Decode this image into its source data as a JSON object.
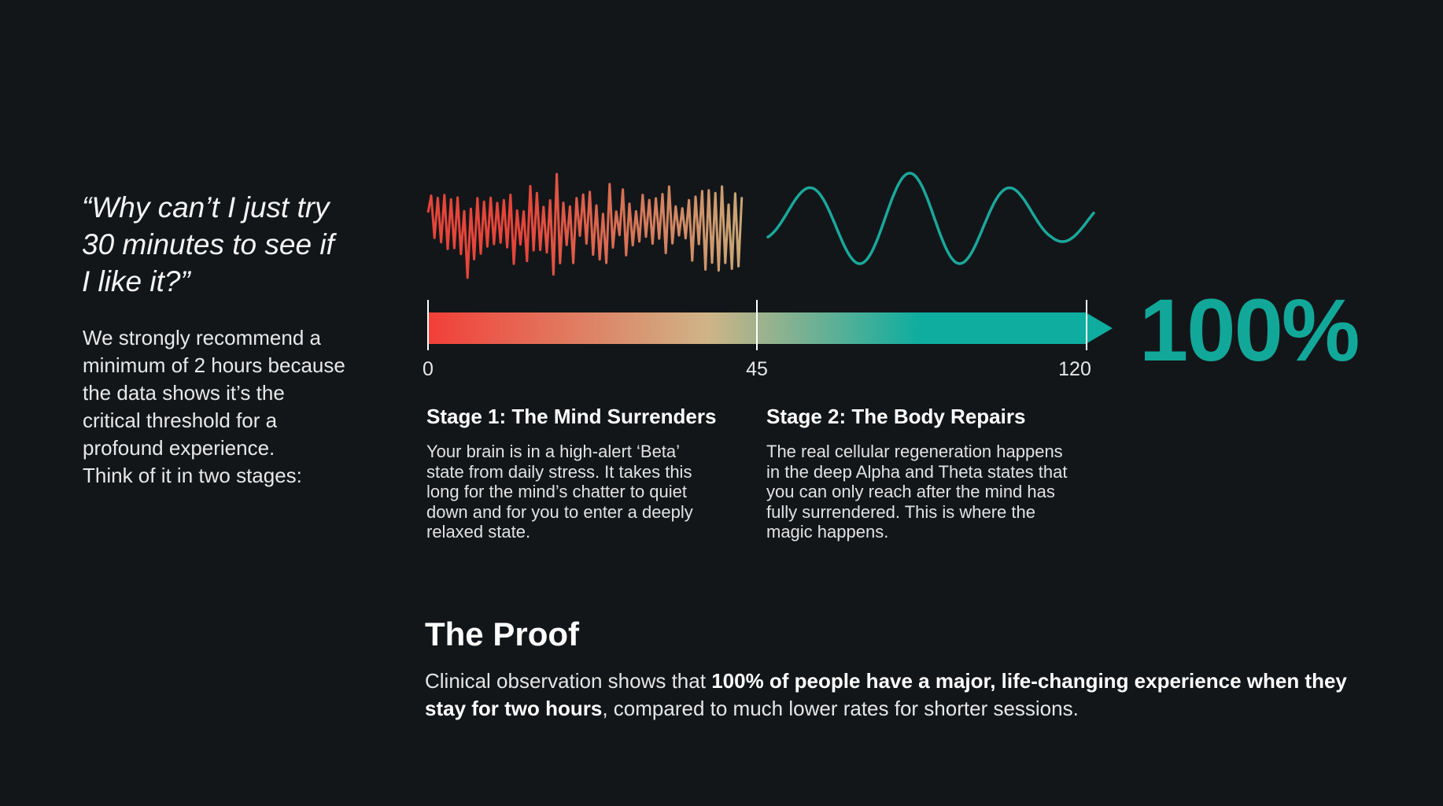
{
  "quote": {
    "line1": "“Why can’t I just try",
    "line2": "30 minutes to see if",
    "line3": "I like it?”"
  },
  "intro": {
    "line1": "We strongly recommend a",
    "line2": "minimum of 2 hours because",
    "line3": "the data shows it’s the",
    "line4": "critical threshold for a",
    "line5": "profound experience.",
    "line6": "Think of it in two stages:"
  },
  "timeline": {
    "ticks": [
      "0",
      "45",
      "120"
    ],
    "big_value": "100%",
    "colors": {
      "start": "#f23f38",
      "middle": "#cfb487",
      "end": "#0eada0",
      "wave_start": "#e6453a",
      "wave_end": "#c9a878",
      "calm_wave": "#1aa89b"
    }
  },
  "stages": [
    {
      "title": "Stage 1: The Mind Surrenders",
      "lines": [
        "Your brain is in a high-alert ‘Beta’",
        "state from daily stress. It takes this",
        "long for the mind’s chatter to quiet",
        "down and for you to enter a deeply",
        "relaxed state."
      ]
    },
    {
      "title": "Stage 2: The Body Repairs",
      "lines": [
        "The real cellular regeneration happens",
        "in the deep Alpha and Theta states that",
        "you can only reach after the mind has",
        "fully surrendered. This is where the",
        "magic happens."
      ]
    }
  ],
  "proof": {
    "title": "The Proof",
    "text_pre": "Clinical observation shows that ",
    "text_bold": "100% of people have a major, life-changing experience when they stay for two hours",
    "text_post": ", compared to much lower rates for shorter sessions."
  }
}
